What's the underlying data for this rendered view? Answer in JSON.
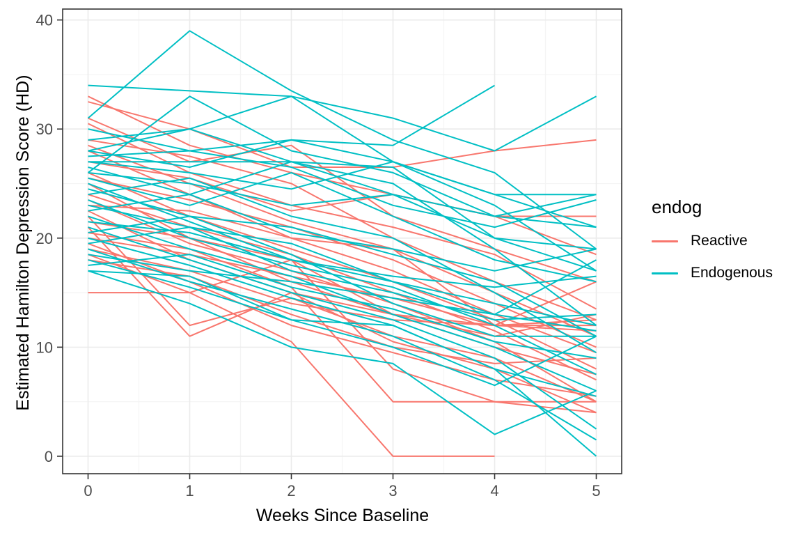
{
  "colors": {
    "background": "#FFFFFF",
    "grid_major": "#EBEBEB",
    "grid_minor": "#F4F4F4",
    "panel_border": "#343434",
    "tick": "#333333",
    "tick_label": "#4D4D4D",
    "text": "#000000",
    "reactive": "#F8766D",
    "endogenous": "#00BFC4"
  },
  "chart_data": {
    "type": "line",
    "title": "",
    "xlabel": "Weeks Since Baseline",
    "ylabel": "Estimated Hamilton Depression Score (HD)",
    "x": [
      0,
      1,
      2,
      3,
      4,
      5
    ],
    "x_ticks": [
      0,
      1,
      2,
      3,
      4,
      5
    ],
    "y_ticks": [
      0,
      10,
      20,
      30,
      40
    ],
    "x_minor": [
      0.5,
      1.5,
      2.5,
      3.5,
      4.5
    ],
    "y_minor": [
      5,
      15,
      25,
      35
    ],
    "xlim": [
      -0.25,
      5.25
    ],
    "ylim": [
      -1.6,
      41
    ],
    "grid": true,
    "legend": {
      "title": "endog",
      "position": "right",
      "entries": [
        {
          "label": "Reactive",
          "group": "R",
          "color": "#F8766D"
        },
        {
          "label": "Endogenous",
          "group": "E",
          "color": "#00BFC4"
        }
      ]
    },
    "series": [
      {
        "group": "R",
        "values": [
          33,
          28.5,
          26,
          24,
          22,
          18.5
        ]
      },
      {
        "group": "R",
        "values": [
          32.5,
          30,
          26.5,
          26.5,
          28,
          29
        ]
      },
      {
        "group": "R",
        "values": [
          31,
          27,
          28.5,
          22,
          19,
          16
        ]
      },
      {
        "group": "R",
        "values": [
          30.5,
          26,
          23,
          21,
          18.5,
          13.5
        ]
      },
      {
        "group": "R",
        "values": [
          29,
          27.5,
          25,
          20,
          16,
          12.5
        ]
      },
      {
        "group": "R",
        "values": [
          28.5,
          25,
          21.5,
          19,
          15,
          11
        ]
      },
      {
        "group": "R",
        "values": [
          28,
          24,
          20,
          17,
          13,
          9.5
        ]
      },
      {
        "group": "R",
        "values": [
          27,
          25.5,
          22.5,
          24,
          22,
          22
        ]
      },
      {
        "group": "R",
        "values": [
          26,
          22,
          19,
          16,
          12.5,
          8
        ]
      },
      {
        "group": "R",
        "values": [
          25.5,
          23.5,
          21,
          18,
          14,
          10
        ]
      },
      {
        "group": "R",
        "values": [
          25,
          20,
          16,
          13,
          12,
          12
        ]
      },
      {
        "group": "R",
        "values": [
          24,
          21,
          18.5,
          15,
          11.5,
          7
        ]
      },
      {
        "group": "R",
        "values": [
          23.5,
          19.5,
          17,
          14,
          10.5,
          5
        ]
      },
      {
        "group": "R",
        "values": [
          23,
          22.5,
          20,
          19,
          12,
          12.5
        ]
      },
      {
        "group": "R",
        "values": [
          22.5,
          18,
          15,
          10.5,
          8,
          4
        ]
      },
      {
        "group": "R",
        "values": [
          22,
          12,
          14.5,
          11,
          9,
          5
        ]
      },
      {
        "group": "R",
        "values": [
          21,
          11,
          15,
          13,
          10,
          7.5
        ]
      },
      {
        "group": "R",
        "values": [
          21.5,
          20,
          18,
          8,
          5,
          5
        ]
      },
      {
        "group": "R",
        "values": [
          20.5,
          19,
          15.5,
          5,
          5,
          4
        ]
      },
      {
        "group": "R",
        "values": [
          20,
          18.5,
          16.5,
          14.5,
          12,
          16
        ]
      },
      {
        "group": "R",
        "values": [
          19.5,
          16,
          12,
          9.5,
          7,
          5.5
        ]
      },
      {
        "group": "R",
        "values": [
          19,
          17,
          14,
          12.5,
          12,
          11.5
        ]
      },
      {
        "group": "R",
        "values": [
          18.5,
          15,
          10.5,
          0,
          0,
          null
        ]
      },
      {
        "group": "R",
        "values": [
          18,
          16.5,
          13,
          10,
          8.5,
          9
        ]
      },
      {
        "group": "R",
        "values": [
          15,
          15,
          18,
          13,
          11,
          13
        ]
      },
      {
        "group": "E",
        "values": [
          34,
          33.5,
          33,
          31,
          28,
          33
        ]
      },
      {
        "group": "E",
        "values": [
          31,
          39,
          33.5,
          29,
          26,
          19
        ]
      },
      {
        "group": "E",
        "values": [
          26,
          33,
          28,
          26,
          22,
          21
        ]
      },
      {
        "group": "E",
        "values": [
          29,
          30,
          27,
          24,
          20,
          17
        ]
      },
      {
        "group": "E",
        "values": [
          30,
          28,
          29,
          27,
          24,
          24
        ]
      },
      {
        "group": "E",
        "values": [
          28,
          26.5,
          29,
          28.5,
          34,
          null
        ]
      },
      {
        "group": "E",
        "values": [
          27,
          27,
          27,
          26.5,
          20,
          19
        ]
      },
      {
        "group": "E",
        "values": [
          27,
          26,
          24.5,
          27,
          23,
          17
        ]
      },
      {
        "group": "E",
        "values": [
          26.5,
          24,
          27,
          25,
          19,
          12
        ]
      },
      {
        "group": "E",
        "values": [
          26,
          25,
          23,
          24,
          22,
          24
        ]
      },
      {
        "group": "E",
        "values": [
          25.5,
          23,
          26,
          22,
          18,
          16
        ]
      },
      {
        "group": "E",
        "values": [
          25,
          21.5,
          18,
          16,
          13,
          11.5
        ]
      },
      {
        "group": "E",
        "values": [
          24.5,
          22,
          21,
          18.5,
          16,
          11
        ]
      },
      {
        "group": "E",
        "values": [
          24,
          25.5,
          22,
          20,
          15,
          9.5
        ]
      },
      {
        "group": "E",
        "values": [
          23.5,
          20,
          17.5,
          15.5,
          12,
          7.5
        ]
      },
      {
        "group": "E",
        "values": [
          23,
          21,
          19.5,
          16,
          14,
          12
        ]
      },
      {
        "group": "E",
        "values": [
          22.5,
          24,
          20.5,
          19,
          17,
          19
        ]
      },
      {
        "group": "E",
        "values": [
          22,
          19,
          16.5,
          13,
          10,
          6
        ]
      },
      {
        "group": "E",
        "values": [
          21.5,
          20.5,
          18,
          16.5,
          15.5,
          16.5
        ]
      },
      {
        "group": "E",
        "values": [
          21,
          18,
          15,
          12.5,
          9,
          2.5
        ]
      },
      {
        "group": "E",
        "values": [
          20.5,
          22,
          18.5,
          14,
          11,
          11
        ]
      },
      {
        "group": "E",
        "values": [
          20,
          17.5,
          14.5,
          12,
          8,
          5.5
        ]
      },
      {
        "group": "E",
        "values": [
          19.5,
          21,
          17,
          15,
          12.5,
          13
        ]
      },
      {
        "group": "E",
        "values": [
          19,
          16,
          13.5,
          11,
          7,
          1.5
        ]
      },
      {
        "group": "E",
        "values": [
          18.5,
          17,
          16,
          14.5,
          13,
          18
        ]
      },
      {
        "group": "E",
        "values": [
          18,
          15.5,
          12.5,
          10,
          6.5,
          11
        ]
      },
      {
        "group": "E",
        "values": [
          17.5,
          18.5,
          15.5,
          13.5,
          10.5,
          9
        ]
      },
      {
        "group": "E",
        "values": [
          17,
          16.5,
          12.5,
          12,
          8,
          0
        ]
      },
      {
        "group": "E",
        "values": [
          17,
          14,
          10,
          8.5,
          2,
          6
        ]
      },
      {
        "group": "E",
        "values": [
          27.5,
          28,
          26.5,
          23,
          21,
          23.5
        ]
      },
      {
        "group": "E",
        "values": [
          28,
          30,
          33,
          27,
          24,
          21
        ]
      }
    ]
  }
}
